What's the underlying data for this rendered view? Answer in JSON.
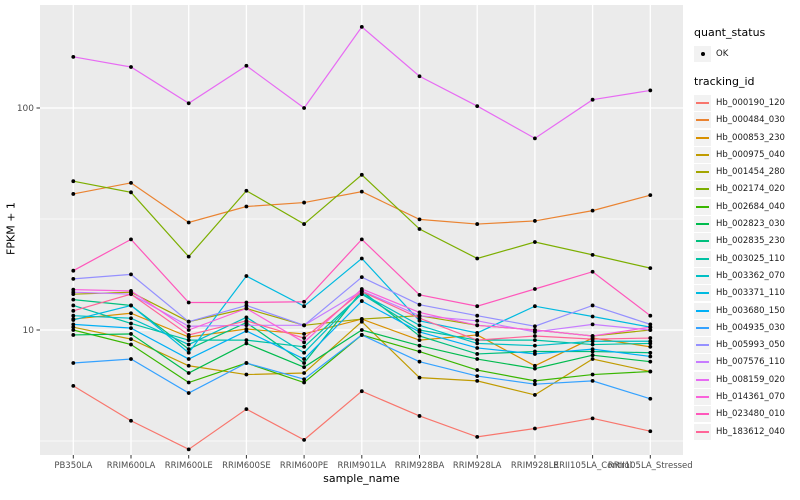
{
  "axes": {
    "x_title": "sample_name",
    "y_title": "FPKM + 1",
    "y_scale": "log10"
  },
  "legend": {
    "quant_title": "quant_status",
    "quant_items": [
      {
        "label": "OK",
        "marker": "black-point"
      }
    ],
    "tracking_title": "tracking_id"
  },
  "colors": {
    "panel_background": "#EBEBEB",
    "gridline": "#FFFFFF",
    "tick_label": "#4D4D4D",
    "point": "#000000",
    "legend_key_background": "#F2F2F2"
  },
  "chart_data": {
    "type": "line",
    "title": "",
    "xlabel": "sample_name",
    "ylabel": "FPKM + 1",
    "y_scale": "log10",
    "ylim": [
      2.7,
      290
    ],
    "grid": true,
    "legend_position": "right",
    "point_marker": "small black point on every vertex (quant_status OK)",
    "y_ticks": [
      {
        "label": "100",
        "value": 100
      },
      {
        "label": "10",
        "value": 10
      }
    ],
    "y_minor_gridlines": [
      31.62,
      3.162
    ],
    "categories": [
      "PB350LA",
      "RRIM600LA",
      "RRIM600LE",
      "RRIM600SE",
      "RRIM600PE",
      "RRIM901LA",
      "RRIM928BA",
      "RRIM928LA",
      "RRIM928LE",
      "RRII105LA_Control",
      "RRII105LA_Stressed"
    ],
    "series": [
      {
        "name": "Hb_000190_120",
        "color": "#F8766D",
        "values": [
          5.6,
          3.9,
          2.9,
          4.4,
          3.2,
          5.3,
          4.1,
          3.3,
          3.6,
          4.0,
          3.5
        ]
      },
      {
        "name": "Hb_000484_030",
        "color": "#EA8331",
        "values": [
          41,
          46,
          30.5,
          36,
          37.5,
          42,
          31.5,
          30,
          31,
          34.5,
          40.5
        ]
      },
      {
        "name": "Hb_000853_230",
        "color": "#D89000",
        "values": [
          11.2,
          11.9,
          9.3,
          10.1,
          9.6,
          11.2,
          9.0,
          9.5,
          6.9,
          9.2,
          8.4
        ]
      },
      {
        "name": "Hb_000975_040",
        "color": "#C09B00",
        "values": [
          10.3,
          9.1,
          6.9,
          6.3,
          6.4,
          10.9,
          6.1,
          5.9,
          5.1,
          7.4,
          6.5
        ]
      },
      {
        "name": "Hb_001454_280",
        "color": "#A3A500",
        "values": [
          14.5,
          14.8,
          10.9,
          12.5,
          10.5,
          11.2,
          11.6,
          10.5,
          10.0,
          9.4,
          10.0
        ]
      },
      {
        "name": "Hb_002174_020",
        "color": "#7CAE00",
        "values": [
          46.8,
          41.7,
          21.4,
          42.4,
          30.0,
          50.0,
          28.5,
          21.0,
          24.9,
          21.8,
          19.0
        ]
      },
      {
        "name": "Hb_002684_040",
        "color": "#39B600",
        "values": [
          10.0,
          8.6,
          5.8,
          7.1,
          5.8,
          9.5,
          8.0,
          6.6,
          5.9,
          6.3,
          6.5
        ]
      },
      {
        "name": "Hb_002823_030",
        "color": "#00BB4E",
        "values": [
          9.5,
          9.6,
          6.4,
          8.7,
          6.8,
          10.0,
          8.5,
          7.4,
          6.7,
          7.7,
          7.2
        ]
      },
      {
        "name": "Hb_002835_230",
        "color": "#00BF7D",
        "values": [
          13.7,
          12.9,
          8.2,
          10.8,
          7.1,
          15.0,
          9.4,
          7.8,
          8.0,
          8.0,
          7.9
        ]
      },
      {
        "name": "Hb_003025_110",
        "color": "#00C1A3",
        "values": [
          12.9,
          10.7,
          9.0,
          9.0,
          8.4,
          14.5,
          10.0,
          9.0,
          9.0,
          8.6,
          8.7
        ]
      },
      {
        "name": "Hb_003362_070",
        "color": "#00BFC4",
        "values": [
          11.6,
          11.3,
          8.6,
          11.4,
          7.9,
          14.6,
          10.5,
          8.7,
          8.5,
          8.9,
          8.9
        ]
      },
      {
        "name": "Hb_003371_110",
        "color": "#00BAE0",
        "values": [
          11.1,
          12.9,
          7.9,
          17.5,
          12.8,
          21.0,
          11.0,
          9.7,
          12.8,
          11.5,
          10.3
        ]
      },
      {
        "name": "Hb_003680_150",
        "color": "#00B0F6",
        "values": [
          10.6,
          10.2,
          7.4,
          9.9,
          7.4,
          13.5,
          9.8,
          8.3,
          7.8,
          8.2,
          7.6
        ]
      },
      {
        "name": "Hb_004935_030",
        "color": "#35A2FF",
        "values": [
          7.1,
          7.4,
          5.2,
          7.1,
          6.0,
          9.5,
          7.2,
          6.2,
          5.7,
          5.9,
          4.9
        ]
      },
      {
        "name": "Hb_005993_050",
        "color": "#9590FF",
        "values": [
          17.0,
          17.8,
          10.9,
          12.9,
          10.5,
          17.3,
          13.0,
          11.6,
          10.4,
          12.9,
          10.6
        ]
      },
      {
        "name": "Hb_007576_110",
        "color": "#C77CFF",
        "values": [
          14.8,
          14.5,
          10.4,
          10.5,
          10.5,
          15.0,
          11.6,
          11.0,
          9.8,
          10.6,
          10.0
        ]
      },
      {
        "name": "Hb_008159_020",
        "color": "#E76BF3",
        "values": [
          170,
          153,
          105,
          155,
          100,
          232,
          139,
          102,
          73,
          109,
          120
        ]
      },
      {
        "name": "Hb_014361_070",
        "color": "#FA62DB",
        "values": [
          15.2,
          15.0,
          10.0,
          12.5,
          8.8,
          15.3,
          12.0,
          10.5,
          10.0,
          9.4,
          10.3
        ]
      },
      {
        "name": "Hb_023480_010",
        "color": "#FF57BB",
        "values": [
          18.5,
          25.6,
          13.3,
          13.3,
          13.4,
          25.6,
          14.4,
          12.8,
          15.3,
          18.3,
          11.6
        ]
      },
      {
        "name": "Hb_183612_040",
        "color": "#FF6598",
        "values": [
          12.2,
          14.5,
          9.5,
          11.0,
          9.2,
          14.9,
          11.3,
          9.0,
          9.4,
          9.1,
          9.2
        ]
      }
    ]
  }
}
